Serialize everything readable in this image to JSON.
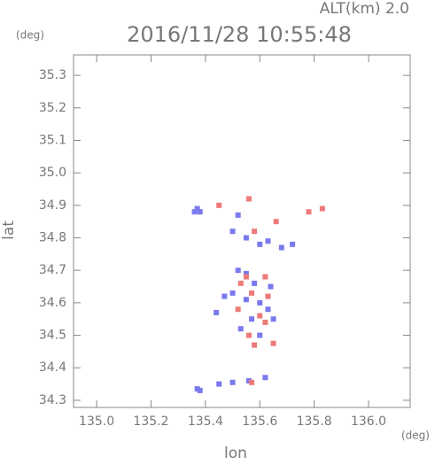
{
  "chart_data": {
    "type": "scatter",
    "title": "2016/11/28 10:55:48",
    "subtitle": "ALT(km) 2.0",
    "y_unit": "(deg)",
    "x_unit": "(deg)",
    "x_label": "lon",
    "y_label": "lat",
    "xlim": [
      134.915,
      136.153
    ],
    "ylim": [
      34.278,
      35.363
    ],
    "xticks": [
      {
        "value": 135,
        "label": "135.0"
      },
      135.2,
      135.4,
      135.6,
      135.8,
      {
        "value": 136,
        "label": "136.0"
      }
    ],
    "yticks": [
      34.3,
      34.4,
      34.5,
      34.6,
      34.7,
      34.8,
      34.9,
      {
        "value": 35,
        "label": "35.0"
      },
      35.1,
      35.2,
      35.3
    ],
    "series": [
      {
        "color": "#7a7aee",
        "x": [
          135.36,
          135.37,
          135.38,
          135.52,
          135.5,
          135.55,
          135.6,
          135.63,
          135.72,
          135.52,
          135.55,
          135.58,
          135.5,
          135.55,
          135.6,
          135.63,
          135.57,
          135.53,
          135.6,
          135.65,
          135.47,
          135.44,
          135.38,
          135.37,
          135.45,
          135.5,
          135.56,
          135.62,
          135.68,
          135.64
        ],
        "y": [
          34.88,
          34.89,
          34.88,
          34.87,
          34.82,
          34.8,
          34.78,
          34.79,
          34.78,
          34.7,
          34.69,
          34.66,
          34.63,
          34.61,
          34.6,
          34.58,
          34.55,
          34.52,
          34.5,
          34.55,
          34.62,
          34.57,
          34.33,
          34.335,
          34.35,
          34.355,
          34.36,
          34.37,
          34.77,
          34.65
        ]
      },
      {
        "color": "#ee7a7a",
        "x": [
          135.45,
          135.56,
          135.66,
          135.78,
          135.58,
          135.53,
          135.62,
          135.57,
          135.52,
          135.63,
          135.56,
          135.58,
          135.62,
          135.6,
          135.55,
          135.83,
          135.57,
          135.65
        ],
        "y": [
          34.9,
          34.92,
          34.85,
          34.88,
          34.82,
          34.66,
          34.68,
          34.63,
          34.58,
          34.62,
          34.5,
          34.47,
          34.54,
          34.56,
          34.68,
          34.89,
          34.355,
          34.475
        ]
      }
    ]
  }
}
